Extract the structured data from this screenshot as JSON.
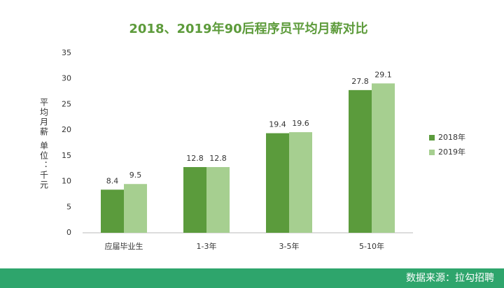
{
  "chart_data": {
    "type": "bar",
    "title": "2018、2019年90后程序员平均月薪对比",
    "ylabel": "平均月薪 单位：千元",
    "categories": [
      "应届毕业生",
      "1-3年",
      "3-5年",
      "5-10年"
    ],
    "series": [
      {
        "name": "2018年",
        "color": "#5b9b3c",
        "values": [
          8.4,
          12.8,
          19.4,
          27.8
        ]
      },
      {
        "name": "2019年",
        "color": "#a6cf90",
        "values": [
          9.5,
          12.8,
          19.6,
          29.1
        ]
      }
    ],
    "ylim": [
      0,
      35
    ],
    "yticks": [
      0,
      5,
      10,
      15,
      20,
      25,
      30,
      35
    ],
    "legend": "right",
    "source": "数据来源：拉勾招聘"
  }
}
